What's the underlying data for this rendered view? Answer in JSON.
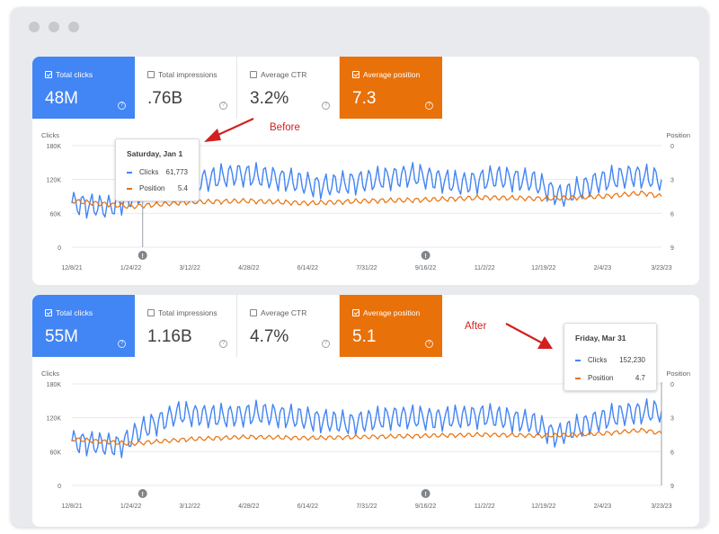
{
  "colors": {
    "clicks": "#4285f4",
    "position": "#e8710a",
    "annotation": "#d22020"
  },
  "before": {
    "cards": [
      {
        "label": "Total clicks",
        "value": "48M",
        "checked": true,
        "style": "blue"
      },
      {
        "label": "Total impressions",
        "value": ".76B",
        "checked": false,
        "style": "plain"
      },
      {
        "label": "Average CTR",
        "value": "3.2%",
        "checked": false,
        "style": "plain"
      },
      {
        "label": "Average position",
        "value": "7.3",
        "checked": true,
        "style": "orange"
      }
    ],
    "annotation": "Before",
    "tooltip": {
      "date": "Saturday, Jan 1",
      "clicks_label": "Clicks",
      "clicks_value": "61,773",
      "position_label": "Position",
      "position_value": "5.4"
    }
  },
  "after": {
    "cards": [
      {
        "label": "Total clicks",
        "value": "55M",
        "checked": true,
        "style": "blue"
      },
      {
        "label": "Total impressions",
        "value": "1.16B",
        "checked": false,
        "style": "plain"
      },
      {
        "label": "Average CTR",
        "value": "4.7%",
        "checked": false,
        "style": "plain"
      },
      {
        "label": "Average position",
        "value": "5.1",
        "checked": true,
        "style": "orange"
      }
    ],
    "annotation": "After",
    "tooltip": {
      "date": "Friday, Mar 31",
      "clicks_label": "Clicks",
      "clicks_value": "152,230",
      "position_label": "Position",
      "position_value": "4.7"
    }
  },
  "chart_data": [
    {
      "type": "line",
      "title": "",
      "left_axis_label": "Clicks",
      "right_axis_label": "Position",
      "left_ticks": [
        "180K",
        "120K",
        "60K",
        "0"
      ],
      "left_tick_values": [
        180000,
        120000,
        60000,
        0
      ],
      "right_ticks": [
        "0",
        "3",
        "6",
        "9"
      ],
      "right_tick_values": [
        0,
        3,
        6,
        9
      ],
      "right_axis_inverted": true,
      "x_ticks": [
        "12/8/21",
        "1/24/22",
        "3/12/22",
        "4/28/22",
        "6/14/22",
        "7/31/22",
        "9/16/22",
        "11/2/22",
        "12/19/22",
        "2/4/23",
        "3/23/23"
      ],
      "series": [
        {
          "name": "Clicks",
          "axis": "left",
          "anchors": [
            [
              0,
              78000
            ],
            [
              0.06,
              70000
            ],
            [
              0.11,
              92000
            ],
            [
              0.16,
              125000
            ],
            [
              0.22,
              118000
            ],
            [
              0.28,
              130000
            ],
            [
              0.35,
              122000
            ],
            [
              0.42,
              108000
            ],
            [
              0.5,
              118000
            ],
            [
              0.58,
              128000
            ],
            [
              0.66,
              112000
            ],
            [
              0.72,
              124000
            ],
            [
              0.78,
              118000
            ],
            [
              0.83,
              90000
            ],
            [
              0.89,
              116000
            ],
            [
              0.95,
              128000
            ],
            [
              1,
              120000
            ]
          ],
          "amplitude": 24000
        },
        {
          "name": "Position",
          "axis": "right",
          "anchors": [
            [
              0,
              4.9
            ],
            [
              0.1,
              5.4
            ],
            [
              0.2,
              5.0
            ],
            [
              0.3,
              4.9
            ],
            [
              0.4,
              5.1
            ],
            [
              0.5,
              4.9
            ],
            [
              0.6,
              4.8
            ],
            [
              0.7,
              4.6
            ],
            [
              0.8,
              4.7
            ],
            [
              0.9,
              4.5
            ],
            [
              0.97,
              4.2
            ],
            [
              1,
              4.5
            ]
          ],
          "amplitude": 0.25
        }
      ],
      "markers": [
        0.12,
        0.6
      ],
      "hover_x": 0.12,
      "grid": true
    },
    {
      "type": "line",
      "title": "",
      "left_axis_label": "Clicks",
      "right_axis_label": "Position",
      "left_ticks": [
        "180K",
        "120K",
        "60K",
        "0"
      ],
      "left_tick_values": [
        180000,
        120000,
        60000,
        0
      ],
      "right_ticks": [
        "0",
        "3",
        "6",
        "9"
      ],
      "right_tick_values": [
        0,
        3,
        6,
        9
      ],
      "right_axis_inverted": true,
      "x_ticks": [
        "12/8/21",
        "1/24/22",
        "3/12/22",
        "4/28/22",
        "6/14/22",
        "7/31/22",
        "9/16/22",
        "11/2/22",
        "12/19/22",
        "2/4/23",
        "3/23/23"
      ],
      "series": [
        {
          "name": "Clicks",
          "axis": "left",
          "anchors": [
            [
              0,
              78000
            ],
            [
              0.08,
              70000
            ],
            [
              0.12,
              100000
            ],
            [
              0.18,
              128000
            ],
            [
              0.25,
              122000
            ],
            [
              0.32,
              128000
            ],
            [
              0.4,
              118000
            ],
            [
              0.47,
              110000
            ],
            [
              0.55,
              122000
            ],
            [
              0.62,
              118000
            ],
            [
              0.7,
              124000
            ],
            [
              0.78,
              112000
            ],
            [
              0.82,
              88000
            ],
            [
              0.88,
              112000
            ],
            [
              0.94,
              128000
            ],
            [
              1,
              132000
            ]
          ],
          "amplitude": 24000
        },
        {
          "name": "Position",
          "axis": "right",
          "anchors": [
            [
              0,
              4.9
            ],
            [
              0.1,
              5.3
            ],
            [
              0.2,
              4.9
            ],
            [
              0.3,
              4.7
            ],
            [
              0.4,
              4.8
            ],
            [
              0.5,
              4.7
            ],
            [
              0.6,
              4.6
            ],
            [
              0.7,
              4.5
            ],
            [
              0.8,
              4.6
            ],
            [
              0.9,
              4.4
            ],
            [
              0.97,
              4.1
            ],
            [
              1,
              4.4
            ]
          ],
          "amplitude": 0.22
        }
      ],
      "markers": [
        0.12,
        0.6
      ],
      "hover_x": 1.0,
      "grid": true
    }
  ]
}
